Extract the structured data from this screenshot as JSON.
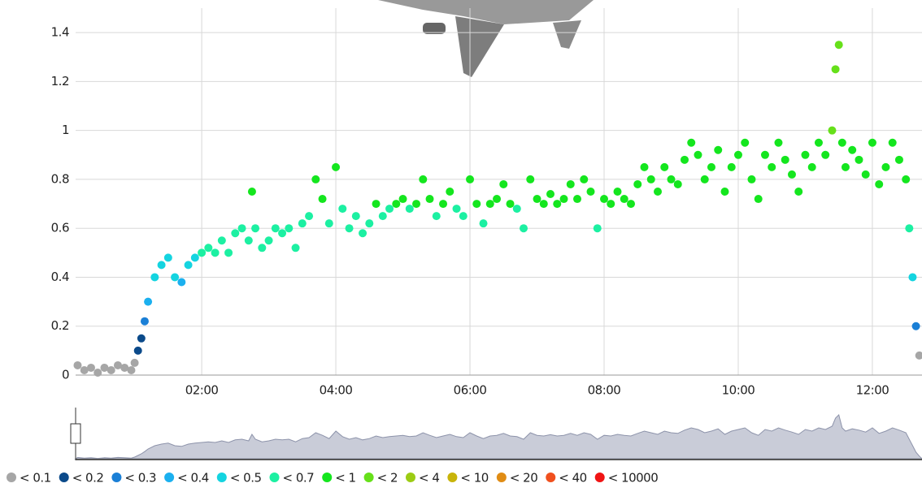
{
  "chart_data": {
    "type": "scatter",
    "x": [
      0.15,
      0.25,
      0.35,
      0.45,
      0.55,
      0.65,
      0.75,
      0.85,
      0.95,
      1.0,
      1.05,
      1.1,
      1.15,
      1.2,
      1.3,
      1.4,
      1.5,
      1.6,
      1.7,
      1.8,
      1.9,
      2.0,
      2.1,
      2.2,
      2.3,
      2.4,
      2.5,
      2.6,
      2.7,
      2.75,
      2.8,
      2.9,
      3.0,
      3.1,
      3.2,
      3.3,
      3.4,
      3.5,
      3.6,
      3.7,
      3.8,
      3.9,
      4.0,
      4.1,
      4.2,
      4.3,
      4.4,
      4.5,
      4.6,
      4.7,
      4.8,
      4.9,
      5.0,
      5.1,
      5.2,
      5.3,
      5.4,
      5.5,
      5.6,
      5.7,
      5.8,
      5.9,
      6.0,
      6.1,
      6.2,
      6.3,
      6.4,
      6.5,
      6.6,
      6.7,
      6.8,
      6.9,
      7.0,
      7.1,
      7.2,
      7.3,
      7.4,
      7.5,
      7.6,
      7.7,
      7.8,
      7.9,
      8.0,
      8.1,
      8.2,
      8.3,
      8.4,
      8.5,
      8.6,
      8.7,
      8.8,
      8.9,
      9.0,
      9.1,
      9.2,
      9.3,
      9.4,
      9.5,
      9.6,
      9.7,
      9.8,
      9.9,
      10.0,
      10.1,
      10.2,
      10.3,
      10.4,
      10.5,
      10.6,
      10.7,
      10.8,
      10.9,
      11.0,
      11.1,
      11.2,
      11.3,
      11.4,
      11.45,
      11.5,
      11.55,
      11.6,
      11.7,
      11.8,
      11.9,
      12.0,
      12.1,
      12.2,
      12.3,
      12.4,
      12.5,
      12.55,
      12.6,
      12.65,
      12.7
    ],
    "values": [
      0.04,
      0.02,
      0.03,
      0.01,
      0.03,
      0.02,
      0.04,
      0.03,
      0.02,
      0.05,
      0.1,
      0.15,
      0.22,
      0.3,
      0.4,
      0.45,
      0.48,
      0.4,
      0.38,
      0.45,
      0.48,
      0.5,
      0.52,
      0.5,
      0.55,
      0.5,
      0.58,
      0.6,
      0.55,
      0.75,
      0.6,
      0.52,
      0.55,
      0.6,
      0.58,
      0.6,
      0.52,
      0.62,
      0.65,
      0.8,
      0.72,
      0.62,
      0.85,
      0.68,
      0.6,
      0.65,
      0.58,
      0.62,
      0.7,
      0.65,
      0.68,
      0.7,
      0.72,
      0.68,
      0.7,
      0.8,
      0.72,
      0.65,
      0.7,
      0.75,
      0.68,
      0.65,
      0.8,
      0.7,
      0.62,
      0.7,
      0.72,
      0.78,
      0.7,
      0.68,
      0.6,
      0.8,
      0.72,
      0.7,
      0.74,
      0.7,
      0.72,
      0.78,
      0.72,
      0.8,
      0.75,
      0.6,
      0.72,
      0.7,
      0.75,
      0.72,
      0.7,
      0.78,
      0.85,
      0.8,
      0.75,
      0.85,
      0.8,
      0.78,
      0.88,
      0.95,
      0.9,
      0.8,
      0.85,
      0.92,
      0.75,
      0.85,
      0.9,
      0.95,
      0.8,
      0.72,
      0.9,
      0.85,
      0.95,
      0.88,
      0.82,
      0.75,
      0.9,
      0.85,
      0.95,
      0.9,
      1.0,
      1.25,
      1.35,
      0.95,
      0.85,
      0.92,
      0.88,
      0.82,
      0.95,
      0.78,
      0.85,
      0.95,
      0.88,
      0.8,
      0.6,
      0.4,
      0.2,
      0.08
    ],
    "xlim": [
      0.12,
      12.74
    ],
    "ylim": [
      0,
      1.5
    ],
    "xticks": [
      {
        "value": 2,
        "label": "02:00"
      },
      {
        "value": 4,
        "label": "04:00"
      },
      {
        "value": 6,
        "label": "06:00"
      },
      {
        "value": 8,
        "label": "08:00"
      },
      {
        "value": 10,
        "label": "10:00"
      },
      {
        "value": 12,
        "label": "12:00"
      }
    ],
    "yticks": [
      0,
      0.2,
      0.4,
      0.6,
      0.8,
      1,
      1.2,
      1.4
    ],
    "grid": true,
    "legend": [
      {
        "value": 0.1,
        "label": "< 0.1",
        "color": "#a6a6a6"
      },
      {
        "value": 0.2,
        "label": "< 0.2",
        "color": "#0b4a8a"
      },
      {
        "value": 0.3,
        "label": "< 0.3",
        "color": "#1a7fd6"
      },
      {
        "value": 0.4,
        "label": "< 0.4",
        "color": "#1bb0ef"
      },
      {
        "value": 0.5,
        "label": "< 0.5",
        "color": "#14d4e0"
      },
      {
        "value": 0.7,
        "label": "< 0.7",
        "color": "#1cf0a2"
      },
      {
        "value": 1,
        "label": "< 1",
        "color": "#14e61e"
      },
      {
        "value": 2,
        "label": "< 2",
        "color": "#66e01a"
      },
      {
        "value": 4,
        "label": "< 4",
        "color": "#9ccc14"
      },
      {
        "value": 10,
        "label": "< 10",
        "color": "#c8b40a"
      },
      {
        "value": 20,
        "label": "< 20",
        "color": "#e08c14"
      },
      {
        "value": 40,
        "label": "< 40",
        "color": "#f0501e"
      },
      {
        "value": 10000,
        "label": "< 10000",
        "color": "#f01414"
      }
    ]
  }
}
